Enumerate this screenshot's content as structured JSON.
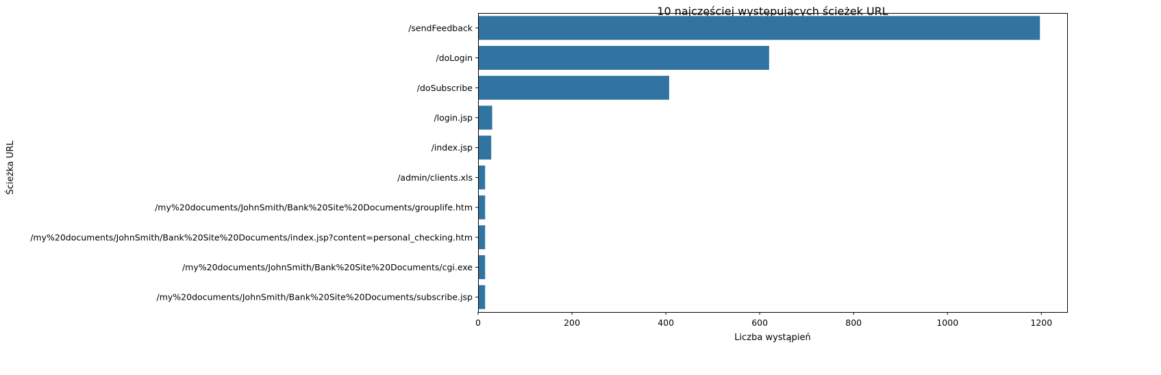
{
  "chart_data": {
    "type": "bar",
    "orientation": "horizontal",
    "title": "10 najczęściej występujących ścieżek URL",
    "xlabel": "Liczba wystąpień",
    "ylabel": "Ścieżka URL",
    "xlim": [
      0,
      1255
    ],
    "xticks": [
      0,
      200,
      400,
      600,
      800,
      1000,
      1200
    ],
    "grid": false,
    "color": "#3274a1",
    "categories": [
      "/sendFeedback",
      "/doLogin",
      "/doSubscribe",
      "/login.jsp",
      "/index.jsp",
      "/admin/clients.xls",
      "/my%20documents/JohnSmith/Bank%20Site%20Documents/grouplife.htm",
      "/my%20documents/JohnSmith/Bank%20Site%20Documents/index.jsp?content=personal_checking.htm",
      "/my%20documents/JohnSmith/Bank%20Site%20Documents/cgi.exe",
      "/my%20documents/JohnSmith/Bank%20Site%20Documents/subscribe.jsp"
    ],
    "values": [
      1197,
      620,
      407,
      30,
      28,
      15,
      15,
      15,
      15,
      15
    ]
  }
}
